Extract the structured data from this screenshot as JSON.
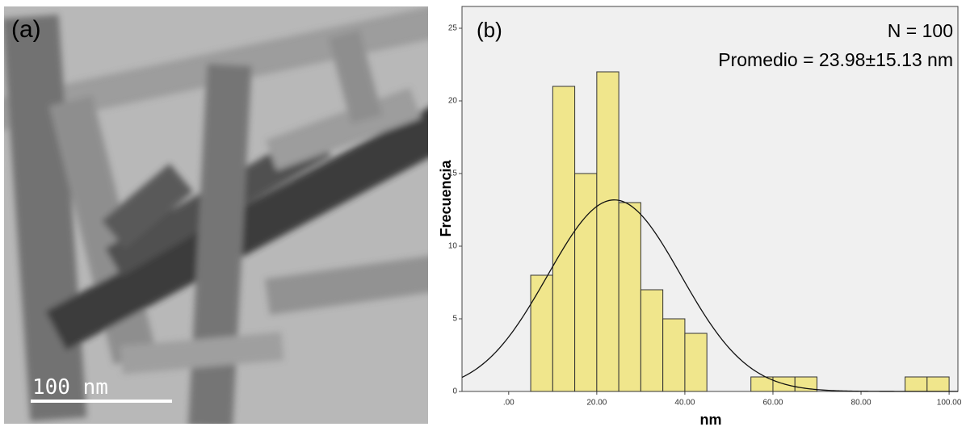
{
  "image_panel": {
    "label": "(a)",
    "scale_bar": "100 nm"
  },
  "chart_data": {
    "type": "histogram",
    "panel_label": "(b)",
    "annotations": [
      "N = 100",
      "Promedio = 23.98±15.13 nm"
    ],
    "x_label": "nm",
    "y_label": "Frecuencia",
    "bins": [
      5,
      10,
      15,
      20,
      25,
      30,
      35,
      40,
      45,
      50,
      55,
      60,
      65,
      70,
      75,
      80,
      85,
      90,
      95,
      100
    ],
    "values": [
      8,
      21,
      15,
      22,
      13,
      7,
      5,
      4,
      0,
      0,
      1,
      1,
      1,
      0,
      0,
      0,
      0,
      1,
      1
    ],
    "color": "#f0e68c",
    "fit": {
      "type": "normal",
      "mean": 23.98,
      "sd": 15.13,
      "n": 100
    },
    "xlim": [
      -10.6,
      102
    ],
    "ylim": [
      0,
      26.5
    ],
    "xticks": [
      {
        "value": 0,
        "label": ".00"
      },
      {
        "value": 20,
        "label": "20.00"
      },
      {
        "value": 40,
        "label": "40.00"
      },
      {
        "value": 60,
        "label": "60.00"
      },
      {
        "value": 80,
        "label": "80.00"
      },
      {
        "value": 100,
        "label": "100.00"
      }
    ],
    "yticks": [
      0,
      5,
      10,
      15,
      20,
      25
    ],
    "grid": false
  }
}
